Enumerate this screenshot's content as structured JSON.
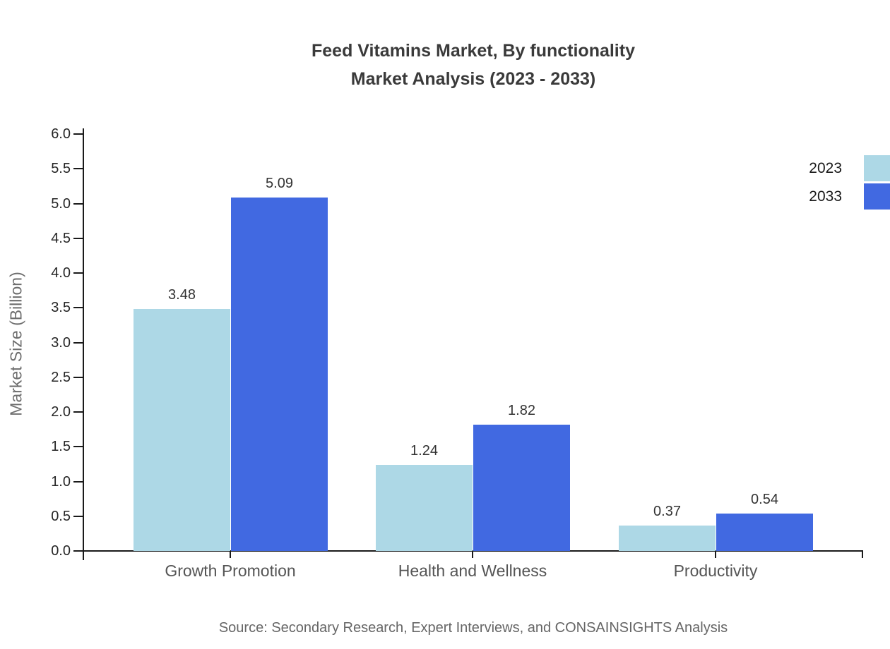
{
  "chart_data": {
    "type": "bar",
    "title_lines": [
      "Feed Vitamins Market, By functionality",
      "Market Analysis (2023 - 2033)"
    ],
    "categories": [
      "Growth Promotion",
      "Health and Wellness",
      "Productivity"
    ],
    "series": [
      {
        "name": "2023",
        "color": "#ADD8E6",
        "values": [
          3.48,
          1.24,
          0.37
        ]
      },
      {
        "name": "2033",
        "color": "#4169E1",
        "values": [
          5.09,
          1.82,
          0.54
        ]
      }
    ],
    "xlabel": "",
    "ylabel": "Market Size (Billion)",
    "ylim": [
      0,
      6
    ],
    "ytick_step": 0.5,
    "value_label_decimals": 2,
    "grid": false,
    "legend_position": "top-right-outside",
    "source": "Source: Secondary Research, Expert Interviews, and CONSAINSIGHTS Analysis"
  }
}
